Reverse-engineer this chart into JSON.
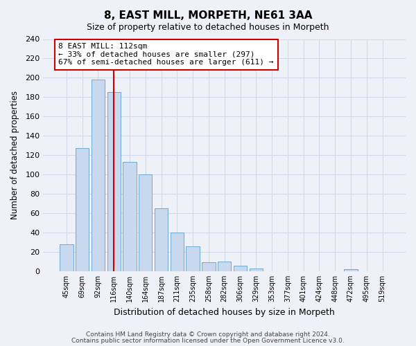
{
  "title": "8, EAST MILL, MORPETH, NE61 3AA",
  "subtitle": "Size of property relative to detached houses in Morpeth",
  "xlabel": "Distribution of detached houses by size in Morpeth",
  "ylabel": "Number of detached properties",
  "bar_labels": [
    "45sqm",
    "69sqm",
    "92sqm",
    "116sqm",
    "140sqm",
    "164sqm",
    "187sqm",
    "211sqm",
    "235sqm",
    "258sqm",
    "282sqm",
    "306sqm",
    "329sqm",
    "353sqm",
    "377sqm",
    "401sqm",
    "424sqm",
    "448sqm",
    "472sqm",
    "495sqm",
    "519sqm"
  ],
  "bar_heights": [
    28,
    127,
    198,
    185,
    113,
    100,
    65,
    40,
    26,
    9,
    10,
    6,
    3,
    0,
    0,
    0,
    0,
    0,
    2,
    0,
    0
  ],
  "bar_color": "#c8d8ee",
  "bar_edge_color": "#6fa8d0",
  "vline_x": 3,
  "vline_color": "#cc0000",
  "annotation_line1": "8 EAST MILL: 112sqm",
  "annotation_line2": "← 33% of detached houses are smaller (297)",
  "annotation_line3": "67% of semi-detached houses are larger (611) →",
  "annotation_box_color": "#ffffff",
  "annotation_box_edge": "#cc0000",
  "ylim": [
    0,
    240
  ],
  "yticks": [
    0,
    20,
    40,
    60,
    80,
    100,
    120,
    140,
    160,
    180,
    200,
    220,
    240
  ],
  "footnote1": "Contains HM Land Registry data © Crown copyright and database right 2024.",
  "footnote2": "Contains public sector information licensed under the Open Government Licence v3.0.",
  "bg_color": "#eef2f8",
  "grid_color": "#d0d8e8"
}
